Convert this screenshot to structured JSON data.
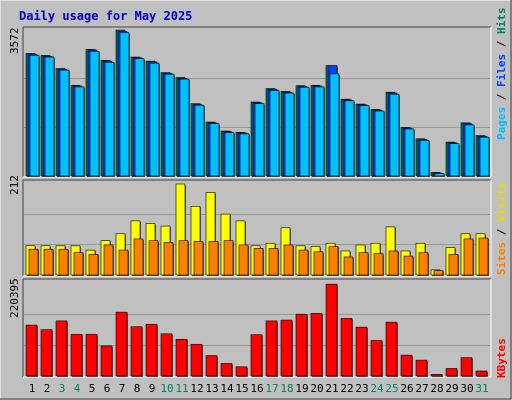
{
  "title": "Daily usage for May 2025",
  "colors": {
    "background": "#c0c0c0",
    "title": "#0000c0",
    "hits": "#00805c",
    "files": "#0040ff",
    "pages": "#00c0ff",
    "visits": "#ffff00",
    "sites": "#ff8000",
    "kbytes": "#ff0000",
    "weekday_label": "#000000",
    "weekend_label": "#00805c"
  },
  "chart_data": [
    {
      "type": "bar",
      "name": "hits-files-pages",
      "max_label": "3572",
      "legend": [
        "Pages",
        "Files",
        "Hits"
      ],
      "categories": [
        "1",
        "2",
        "3",
        "4",
        "5",
        "6",
        "7",
        "8",
        "9",
        "10",
        "11",
        "12",
        "13",
        "14",
        "15",
        "16",
        "17",
        "18",
        "19",
        "20",
        "21",
        "22",
        "23",
        "24",
        "25",
        "26",
        "27",
        "28",
        "29",
        "30",
        "31"
      ],
      "weekend_days": [
        "3",
        "4",
        "10",
        "11",
        "17",
        "18",
        "24",
        "25",
        "31"
      ],
      "ylim": [
        0,
        3572
      ],
      "series": [
        {
          "name": "Hits",
          "values": [
            3000,
            2950,
            2630,
            2220,
            3100,
            2830,
            3570,
            2910,
            2810,
            2530,
            2410,
            1770,
            1320,
            1100,
            1070,
            1810,
            2140,
            2070,
            2210,
            2220,
            2700,
            1880,
            1760,
            1630,
            2050,
            1190,
            910,
            90,
            830,
            1300,
            990
          ]
        },
        {
          "name": "Files",
          "values": [
            2980,
            2930,
            2610,
            2200,
            3080,
            2810,
            3540,
            2890,
            2790,
            2510,
            2390,
            1750,
            1300,
            1080,
            1050,
            1790,
            2120,
            2050,
            2190,
            2200,
            2700,
            1860,
            1740,
            1610,
            2030,
            1170,
            890,
            70,
            810,
            1280,
            970
          ]
        },
        {
          "name": "Pages",
          "values": [
            2950,
            2910,
            2590,
            2180,
            3050,
            2780,
            3510,
            2870,
            2760,
            2490,
            2370,
            1730,
            1280,
            1060,
            1030,
            1770,
            2090,
            2030,
            2170,
            2180,
            2500,
            1840,
            1720,
            1590,
            2000,
            1150,
            870,
            60,
            790,
            1250,
            950
          ]
        }
      ]
    },
    {
      "type": "bar",
      "name": "visits-sites",
      "max_label": "212",
      "legend": [
        "Sites",
        "Visits"
      ],
      "categories": [
        "1",
        "2",
        "3",
        "4",
        "5",
        "6",
        "7",
        "8",
        "9",
        "10",
        "11",
        "12",
        "13",
        "14",
        "15",
        "16",
        "17",
        "18",
        "19",
        "20",
        "21",
        "22",
        "23",
        "24",
        "25",
        "26",
        "27",
        "28",
        "29",
        "30",
        "31"
      ],
      "ylim": [
        0,
        212
      ],
      "series": [
        {
          "name": "Visits",
          "values": [
            68,
            68,
            68,
            68,
            58,
            80,
            96,
            126,
            120,
            114,
            212,
            160,
            192,
            142,
            126,
            68,
            74,
            110,
            68,
            66,
            74,
            56,
            70,
            74,
            112,
            56,
            74,
            12,
            64,
            96,
            96
          ]
        },
        {
          "name": "Sites",
          "values": [
            60,
            60,
            60,
            52,
            48,
            70,
            58,
            84,
            80,
            76,
            80,
            78,
            78,
            80,
            70,
            62,
            62,
            70,
            58,
            54,
            66,
            42,
            52,
            50,
            56,
            44,
            52,
            10,
            48,
            84,
            86
          ]
        }
      ]
    },
    {
      "type": "bar",
      "name": "kbytes",
      "max_label": "220395",
      "legend": [
        "KBytes"
      ],
      "categories": [
        "1",
        "2",
        "3",
        "4",
        "5",
        "6",
        "7",
        "8",
        "9",
        "10",
        "11",
        "12",
        "13",
        "14",
        "15",
        "16",
        "17",
        "18",
        "19",
        "20",
        "21",
        "22",
        "23",
        "24",
        "25",
        "26",
        "27",
        "28",
        "29",
        "30",
        "31"
      ],
      "ylim": [
        0,
        220395
      ],
      "series": [
        {
          "name": "KBytes",
          "values": [
            122000,
            111000,
            132000,
            100000,
            100000,
            72000,
            153000,
            118000,
            124000,
            101000,
            88000,
            76000,
            49000,
            30000,
            22000,
            99000,
            132000,
            134000,
            148000,
            150000,
            220000,
            138000,
            117000,
            85000,
            129000,
            50000,
            38000,
            4000,
            18000,
            44000,
            12000
          ]
        }
      ]
    }
  ]
}
